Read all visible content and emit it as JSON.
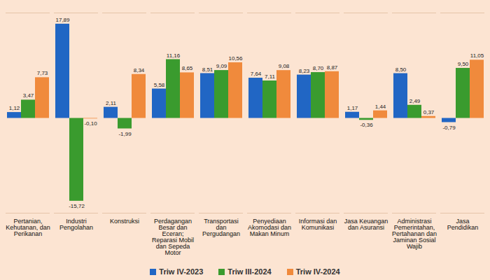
{
  "chart_data": {
    "type": "bar",
    "categories": [
      "Pertanian, Kehutanan, dan Perikanan",
      "Industri Pengolahan",
      "Konstruksi",
      "Perdagangan Besar dan Eceran; Reparasi Mobil dan Sepeda Motor",
      "Transportasi dan Pergudangan",
      "Penyediaan Akomodasi dan Makan Minum",
      "Informasi dan Komunikasi",
      "Jasa Keuangan dan Asuransi",
      "Administrasi Pemerintahan, Pertahanan dan Jaminan Sosial Wajib",
      "Jasa Pendidikan"
    ],
    "series": [
      {
        "name": "Triw IV-2023",
        "color": "#2166c4",
        "values": [
          1.12,
          17.89,
          2.11,
          5.58,
          8.51,
          7.64,
          8.23,
          1.17,
          8.5,
          -0.79
        ],
        "value_labels": [
          "1,12",
          "17,89",
          "2,11",
          "5,58",
          "8,51",
          "7,64",
          "8,23",
          "1,17",
          "8,50",
          "-0,79"
        ]
      },
      {
        "name": "Triw III-2024",
        "color": "#3a9b2e",
        "values": [
          3.47,
          -15.72,
          -1.99,
          11.16,
          9.09,
          7.11,
          8.7,
          -0.36,
          2.49,
          9.5
        ],
        "value_labels": [
          "3,47",
          "-15,72",
          "-1,99",
          "11,16",
          "9,09",
          "7,11",
          "8,70",
          "-0,36",
          "2,49",
          "9,50"
        ]
      },
      {
        "name": "Triw IV-2024",
        "color": "#f08a3c",
        "values": [
          7.73,
          -0.1,
          8.34,
          8.65,
          10.56,
          9.08,
          8.87,
          1.44,
          0.37,
          11.05
        ],
        "value_labels": [
          "7,73",
          "-0,10",
          "8,34",
          "8,65",
          "10,56",
          "9,08",
          "8,87",
          "1,44",
          "0,37",
          "11,05"
        ]
      }
    ],
    "ylim": [
      -18,
      20
    ],
    "data_labels": true,
    "tick_labels": "x",
    "legend": "bottom"
  }
}
